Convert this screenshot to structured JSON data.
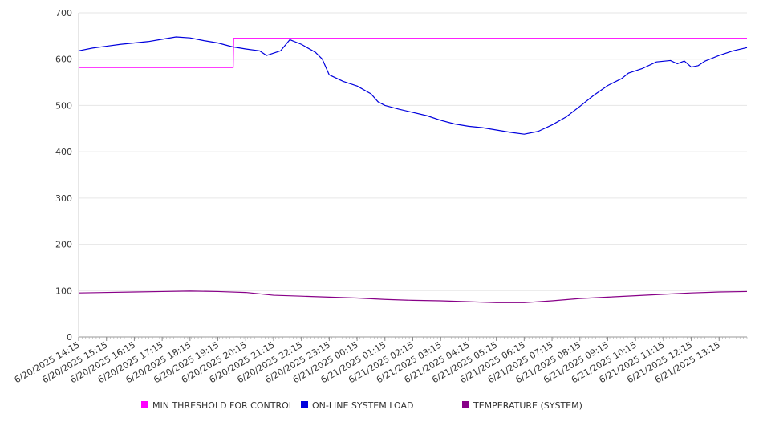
{
  "chart_data": {
    "type": "line",
    "title": "",
    "xlabel": "",
    "ylabel": "",
    "ylim": [
      0,
      700
    ],
    "yticks": [
      0,
      100,
      200,
      300,
      400,
      500,
      600,
      700
    ],
    "grid": true,
    "legend_position": "bottom",
    "x_tick_labels": [
      "6/20/2025 14:15",
      "6/20/2025 15:15",
      "6/20/2025 16:15",
      "6/20/2025 17:15",
      "6/20/2025 18:15",
      "6/20/2025 19:15",
      "6/20/2025 20:15",
      "6/20/2025 21:15",
      "6/20/2025 22:15",
      "6/20/2025 23:15",
      "6/21/2025 00:15",
      "6/21/2025 01:15",
      "6/21/2025 02:15",
      "6/21/2025 03:15",
      "6/21/2025 04:15",
      "6/21/2025 05:15",
      "6/21/2025 06:15",
      "6/21/2025 07:15",
      "6/21/2025 08:15",
      "6/21/2025 09:15",
      "6/21/2025 10:15",
      "6/21/2025 11:15",
      "6/21/2025 12:15",
      "6/21/2025 13:15"
    ],
    "x_range": [
      "6/20/2025 14:15",
      "6/21/2025 14:15"
    ],
    "series": [
      {
        "name": "MIN THRESHOLD FOR CONTROL",
        "color": "#ff00ff",
        "points": [
          [
            "6/20/2025 14:15",
            582
          ],
          [
            "6/20/2025 19:48",
            582
          ],
          [
            "6/20/2025 19:49",
            645
          ],
          [
            "6/21/2025 14:15",
            645
          ]
        ]
      },
      {
        "name": "ON-LINE SYSTEM LOAD",
        "color": "#0000dd",
        "points": [
          [
            "6/20/2025 14:15",
            618
          ],
          [
            "6/20/2025 14:45",
            624
          ],
          [
            "6/20/2025 15:15",
            628
          ],
          [
            "6/20/2025 15:45",
            632
          ],
          [
            "6/20/2025 16:15",
            635
          ],
          [
            "6/20/2025 16:45",
            638
          ],
          [
            "6/20/2025 17:15",
            643
          ],
          [
            "6/20/2025 17:45",
            648
          ],
          [
            "6/20/2025 18:15",
            646
          ],
          [
            "6/20/2025 18:45",
            640
          ],
          [
            "6/20/2025 19:15",
            635
          ],
          [
            "6/20/2025 19:45",
            627
          ],
          [
            "6/20/2025 20:15",
            622
          ],
          [
            "6/20/2025 20:45",
            618
          ],
          [
            "6/20/2025 21:00",
            608
          ],
          [
            "6/20/2025 21:30",
            618
          ],
          [
            "6/20/2025 21:50",
            642
          ],
          [
            "6/20/2025 22:15",
            632
          ],
          [
            "6/20/2025 22:45",
            615
          ],
          [
            "6/20/2025 23:00",
            600
          ],
          [
            "6/20/2025 23:15",
            566
          ],
          [
            "6/20/2025 23:45",
            552
          ],
          [
            "6/21/2025 00:15",
            542
          ],
          [
            "6/21/2025 00:45",
            525
          ],
          [
            "6/21/2025 01:00",
            508
          ],
          [
            "6/21/2025 01:15",
            500
          ],
          [
            "6/21/2025 01:45",
            492
          ],
          [
            "6/21/2025 02:15",
            485
          ],
          [
            "6/21/2025 02:45",
            478
          ],
          [
            "6/21/2025 03:15",
            468
          ],
          [
            "6/21/2025 03:45",
            460
          ],
          [
            "6/21/2025 04:15",
            455
          ],
          [
            "6/21/2025 04:45",
            452
          ],
          [
            "6/21/2025 05:15",
            447
          ],
          [
            "6/21/2025 05:45",
            442
          ],
          [
            "6/21/2025 06:15",
            438
          ],
          [
            "6/21/2025 06:45",
            444
          ],
          [
            "6/21/2025 07:15",
            458
          ],
          [
            "6/21/2025 07:45",
            475
          ],
          [
            "6/21/2025 08:15",
            498
          ],
          [
            "6/21/2025 08:45",
            522
          ],
          [
            "6/21/2025 09:15",
            543
          ],
          [
            "6/21/2025 09:45",
            558
          ],
          [
            "6/21/2025 10:00",
            570
          ],
          [
            "6/21/2025 10:30",
            580
          ],
          [
            "6/21/2025 11:00",
            594
          ],
          [
            "6/21/2025 11:30",
            597
          ],
          [
            "6/21/2025 11:45",
            590
          ],
          [
            "6/21/2025 12:00",
            596
          ],
          [
            "6/21/2025 12:15",
            583
          ],
          [
            "6/21/2025 12:30",
            586
          ],
          [
            "6/21/2025 12:45",
            596
          ],
          [
            "6/21/2025 13:15",
            608
          ],
          [
            "6/21/2025 13:45",
            618
          ],
          [
            "6/21/2025 14:15",
            625
          ]
        ]
      },
      {
        "name": "TEMPERATURE (SYSTEM)",
        "color": "#880088",
        "points": [
          [
            "6/20/2025 14:15",
            95
          ],
          [
            "6/20/2025 16:15",
            97
          ],
          [
            "6/20/2025 17:15",
            98
          ],
          [
            "6/20/2025 18:15",
            99
          ],
          [
            "6/20/2025 19:15",
            98
          ],
          [
            "6/20/2025 20:15",
            96
          ],
          [
            "6/20/2025 21:15",
            90
          ],
          [
            "6/20/2025 22:15",
            88
          ],
          [
            "6/20/2025 23:15",
            86
          ],
          [
            "6/21/2025 00:15",
            84
          ],
          [
            "6/21/2025 01:15",
            81
          ],
          [
            "6/21/2025 02:15",
            79
          ],
          [
            "6/21/2025 03:15",
            78
          ],
          [
            "6/21/2025 04:15",
            76
          ],
          [
            "6/21/2025 05:15",
            74
          ],
          [
            "6/21/2025 06:15",
            74
          ],
          [
            "6/21/2025 07:15",
            78
          ],
          [
            "6/21/2025 08:15",
            83
          ],
          [
            "6/21/2025 09:15",
            86
          ],
          [
            "6/21/2025 10:15",
            89
          ],
          [
            "6/21/2025 11:15",
            92
          ],
          [
            "6/21/2025 12:15",
            95
          ],
          [
            "6/21/2025 13:15",
            97
          ],
          [
            "6/21/2025 14:15",
            98
          ]
        ]
      }
    ]
  }
}
